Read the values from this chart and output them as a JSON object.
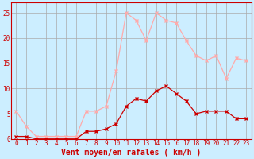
{
  "x": [
    0,
    1,
    2,
    3,
    4,
    5,
    6,
    7,
    8,
    9,
    10,
    11,
    12,
    13,
    14,
    15,
    16,
    17,
    18,
    19,
    20,
    21,
    22,
    23
  ],
  "rafales": [
    5.5,
    2.5,
    0.5,
    0.5,
    0.5,
    0.5,
    0.5,
    5.5,
    5.5,
    6.5,
    13.5,
    25.0,
    23.5,
    19.5,
    25.0,
    23.5,
    23.0,
    19.5,
    16.5,
    15.5,
    16.5,
    12.0,
    16.0,
    15.5
  ],
  "moyen": [
    0.5,
    0.5,
    0.0,
    0.0,
    0.0,
    0.0,
    0.0,
    1.5,
    1.5,
    2.0,
    3.0,
    6.5,
    8.0,
    7.5,
    9.5,
    10.5,
    9.0,
    7.5,
    5.0,
    5.5,
    5.5,
    5.5,
    4.0,
    4.0
  ],
  "rafales_color": "#ffaaaa",
  "moyen_color": "#cc0000",
  "bg_color": "#cceeff",
  "grid_color": "#aaaaaa",
  "xlabel": "Vent moyen/en rafales ( km/h )",
  "ylim": [
    0,
    27
  ],
  "xlim": [
    -0.5,
    23.5
  ],
  "yticks": [
    0,
    5,
    10,
    15,
    20,
    25
  ],
  "xticks": [
    0,
    1,
    2,
    3,
    4,
    5,
    6,
    7,
    8,
    9,
    10,
    11,
    12,
    13,
    14,
    15,
    16,
    17,
    18,
    19,
    20,
    21,
    22,
    23
  ],
  "tick_fontsize": 5.5,
  "xlabel_fontsize": 7
}
